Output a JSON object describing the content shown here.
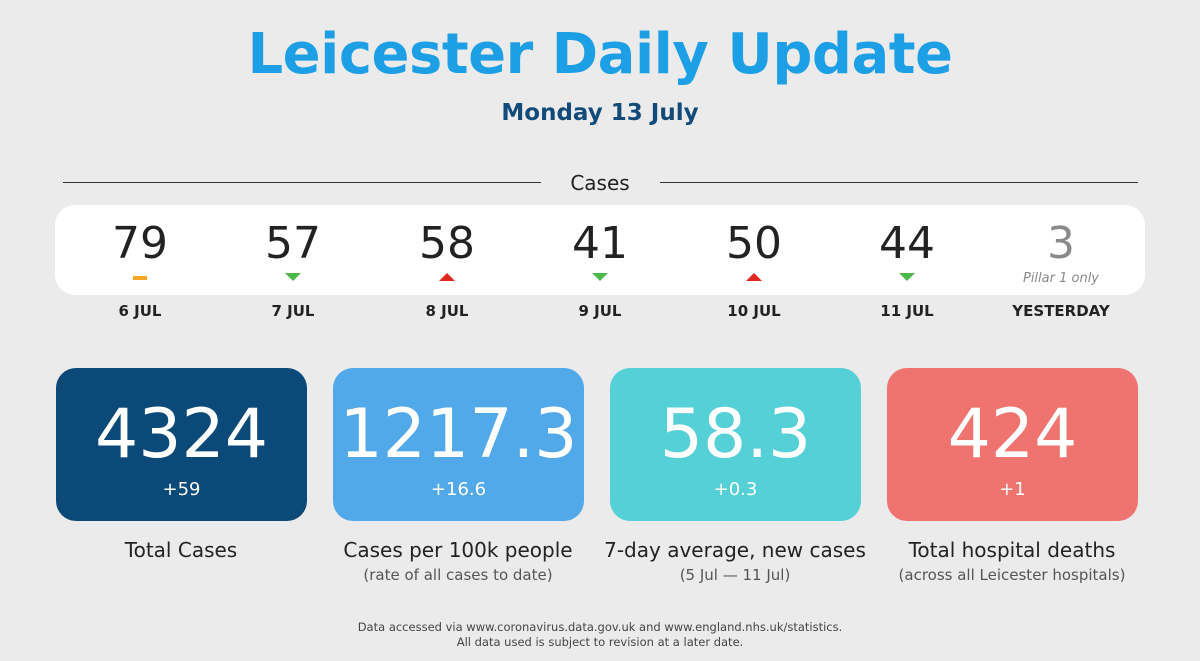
{
  "header": {
    "title": "Leicester Daily Update",
    "date": "Monday 13 July"
  },
  "cases_section": {
    "label": "Cases",
    "days": [
      {
        "value": "79",
        "date": "6 JUL",
        "trend": "flat",
        "note": ""
      },
      {
        "value": "57",
        "date": "7 JUL",
        "trend": "down",
        "note": ""
      },
      {
        "value": "58",
        "date": "8 JUL",
        "trend": "up",
        "note": ""
      },
      {
        "value": "41",
        "date": "9 JUL",
        "trend": "down",
        "note": ""
      },
      {
        "value": "50",
        "date": "10 JUL",
        "trend": "up",
        "note": ""
      },
      {
        "value": "44",
        "date": "11 JUL",
        "trend": "down",
        "note": ""
      },
      {
        "value": "3",
        "date": "YESTERDAY",
        "trend": "none",
        "note": "Pillar 1 only"
      }
    ]
  },
  "stats": [
    {
      "value": "4324",
      "delta": "+59",
      "label": "Total Cases",
      "sub": "",
      "color": "#0b4a78"
    },
    {
      "value": "1217.3",
      "delta": "+16.6",
      "label": "Cases per 100k people",
      "sub": "(rate of all cases to date)",
      "color": "#52a9ea"
    },
    {
      "value": "58.3",
      "delta": "+0.3",
      "label": "7-day average, new cases",
      "sub": "(5 Jul — 11 Jul)",
      "color": "#54d0d6"
    },
    {
      "value": "424",
      "delta": "+1",
      "label": "Total hospital deaths",
      "sub": "(across all Leicester hospitals)",
      "color": "#ef7470"
    }
  ],
  "footer": {
    "line1": "Data accessed via www.coronavirus.data.gov.uk and www.england.nhs.uk/statistics.",
    "line2": "All data used is subject to revision at a later date."
  },
  "colors": {
    "title": "#1d9fe6",
    "subtitle": "#124b7a",
    "trend_up": "#e0281e",
    "trend_down": "#4cb84c",
    "trend_flat": "#f5a623"
  }
}
